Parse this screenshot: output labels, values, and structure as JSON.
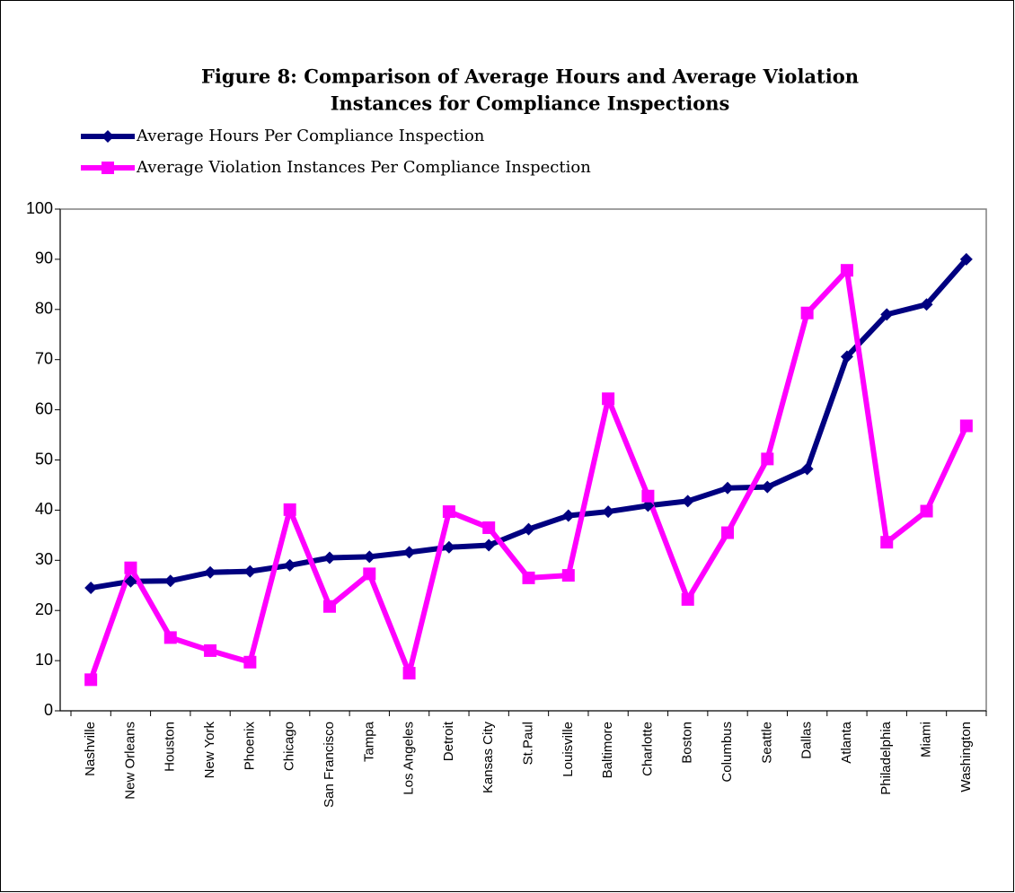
{
  "chart_data": {
    "type": "line",
    "title": [
      "Figure 8:  Comparison of Average Hours and Average Violation",
      "Instances for Compliance Inspections"
    ],
    "categories": [
      "Nashville",
      "New Orleans",
      "Houston",
      "New York",
      "Phoenix",
      "Chicago",
      "San Francisco",
      "Tampa",
      "Los Angeles",
      "Detroit",
      "Kansas City",
      "St.Paul",
      "Louisville",
      "Baltimore",
      "Charlotte",
      "Boston",
      "Columbus",
      "Seattle",
      "Dallas",
      "Atlanta",
      "Philadelphia",
      "Miami",
      "Washington"
    ],
    "series": [
      {
        "name": "Average Hours Per Compliance Inspection",
        "color": "#000080",
        "marker": "diamond",
        "values": [
          24.5,
          25.8,
          25.9,
          27.6,
          27.8,
          29,
          30.5,
          30.7,
          31.6,
          32.6,
          33,
          36.2,
          38.9,
          39.7,
          40.9,
          41.8,
          44.4,
          44.6,
          48.2,
          70.6,
          79,
          81,
          90
        ]
      },
      {
        "name": "Average Violation Instances Per Compliance Inspection",
        "color": "#ff00ff",
        "marker": "square",
        "values": [
          6.2,
          28.5,
          14.6,
          12,
          9.7,
          40.1,
          20.8,
          27.3,
          7.5,
          39.7,
          36.5,
          26.5,
          27,
          62.2,
          42.8,
          22.2,
          35.5,
          50.2,
          79.3,
          87.8,
          33.6,
          39.8,
          56.8
        ]
      }
    ],
    "ylim": [
      0,
      100
    ],
    "yticks": [
      0,
      10,
      20,
      30,
      40,
      50,
      60,
      70,
      80,
      90,
      100
    ],
    "grid": false,
    "legend": "top-left"
  }
}
